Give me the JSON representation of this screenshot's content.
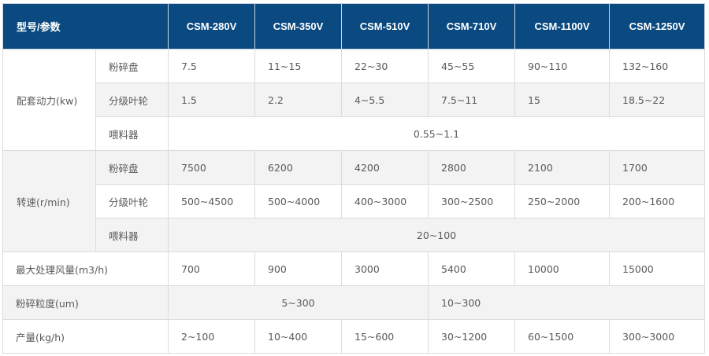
{
  "header": {
    "corner": "型号/参数",
    "models": [
      "CSM-280V",
      "CSM-350V",
      "CSM-510V",
      "CSM-710V",
      "CSM-1100V",
      "CSM-1250V"
    ]
  },
  "groups": {
    "power": {
      "label": "配套动力(kw)",
      "rows": [
        {
          "sub": "粉碎盘",
          "values": [
            "7.5",
            "11~15",
            "22~30",
            "45~55",
            "90~110",
            "132~160"
          ]
        },
        {
          "sub": "分级叶轮",
          "values": [
            "1.5",
            "2.2",
            "4~5.5",
            "7.5~11",
            "15",
            "18.5~22"
          ]
        },
        {
          "sub": "喂料器",
          "span_value": "0.55~1.1"
        }
      ]
    },
    "speed": {
      "label": "转速(r/min)",
      "rows": [
        {
          "sub": "粉碎盘",
          "values": [
            "7500",
            "6200",
            "4200",
            "2800",
            "2100",
            "1700"
          ]
        },
        {
          "sub": "分级叶轮",
          "values": [
            "500~4500",
            "500~4000",
            "400~3000",
            "300~2500",
            "250~2000",
            "200~1600"
          ]
        },
        {
          "sub": "喂料器",
          "span_value": "20~100"
        }
      ]
    }
  },
  "airflow": {
    "label": "最大处理风量(m3/h)",
    "values": [
      "700",
      "900",
      "3000",
      "5400",
      "10000",
      "15000"
    ]
  },
  "fineness": {
    "label": "粉碎粒度(um)",
    "left": "5~300",
    "right": "10~300"
  },
  "output": {
    "label": "产量(kg/h)",
    "values": [
      "2~100",
      "10~400",
      "15~600",
      "30~1200",
      "60~1500",
      "300~3000"
    ]
  }
}
